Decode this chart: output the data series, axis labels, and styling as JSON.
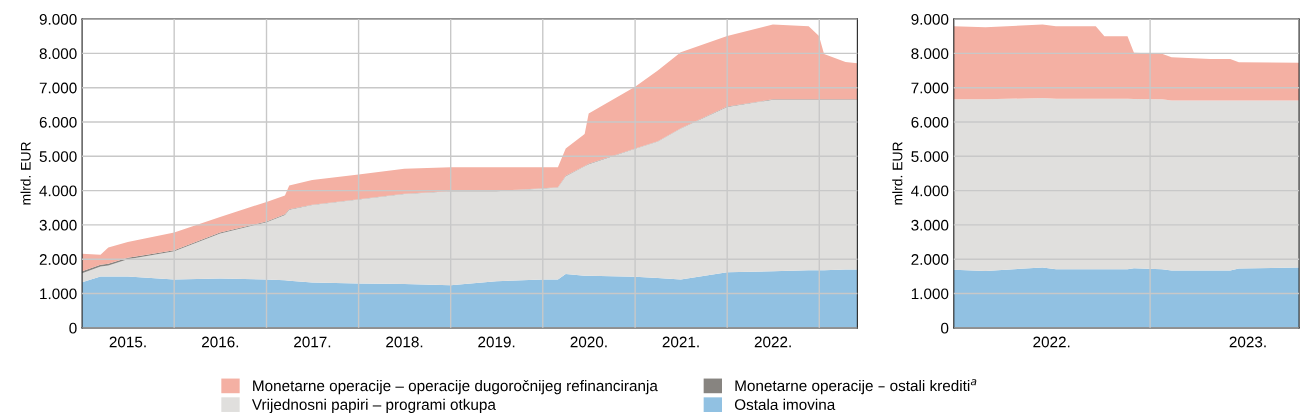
{
  "chart_data": [
    {
      "type": "area",
      "stacked": true,
      "ylabel": "mlrd. EUR",
      "grid": true,
      "legend": "bottom",
      "x": [
        "2015-01-01",
        "2015-03-15",
        "2015-04-15",
        "2015-07-01",
        "2016-01-01",
        "2016-07-01",
        "2017-01-01",
        "2017-03-15",
        "2017-04-01",
        "2017-07-01",
        "2018-01-01",
        "2018-07-01",
        "2019-01-01",
        "2019-07-01",
        "2020-01-01",
        "2020-03-01",
        "2020-04-01",
        "2020-06-15",
        "2020-07-01",
        "2021-01-01",
        "2021-04-01",
        "2021-07-01",
        "2022-01-01",
        "2022-07-01",
        "2022-11-20",
        "2022-12-31",
        "2023-01-20",
        "2023-04-15",
        "2023-06-01"
      ],
      "series": [
        {
          "name": "Ostala imovina",
          "color": "#91c1e2",
          "values": [
            1330,
            1500,
            1500,
            1500,
            1410,
            1440,
            1410,
            1390,
            1370,
            1320,
            1290,
            1280,
            1240,
            1360,
            1410,
            1410,
            1570,
            1520,
            1520,
            1490,
            1450,
            1410,
            1620,
            1650,
            1680,
            1680,
            1680,
            1700,
            1700
          ]
        },
        {
          "name": "Vrijednosni papiri – programi otkupa",
          "color": "#e0dfdd",
          "values": [
            260,
            290,
            320,
            500,
            820,
            1310,
            1670,
            1900,
            2070,
            2260,
            2450,
            2620,
            2740,
            2620,
            2650,
            2680,
            2850,
            3190,
            3250,
            3730,
            3980,
            4400,
            4820,
            5000,
            4970,
            4970,
            4970,
            4950,
            4950
          ]
        },
        {
          "name": "Monetarne operacije – ostali krediti$^{a}$",
          "color": "#878480",
          "values": [
            60,
            50,
            50,
            40,
            30,
            30,
            20,
            20,
            20,
            10,
            10,
            10,
            10,
            10,
            10,
            10,
            10,
            10,
            10,
            10,
            10,
            10,
            10,
            10,
            10,
            10,
            10,
            10,
            10
          ]
        },
        {
          "name": "Monetarne operacije – operacije dugoročnijeg refinanciranja",
          "color": "#f4b0a3",
          "values": [
            510,
            290,
            470,
            460,
            520,
            450,
            570,
            550,
            690,
            720,
            720,
            730,
            690,
            690,
            610,
            580,
            800,
            930,
            1470,
            1800,
            2060,
            2210,
            2060,
            2180,
            2130,
            1850,
            1320,
            1090,
            1050
          ]
        }
      ],
      "xlim": [
        "2015-01-01",
        "2023-06-01"
      ],
      "xticks": [
        {
          "value": "2015-07-02",
          "label": "2015."
        },
        {
          "value": "2016-01-01",
          "label": null
        },
        {
          "value": "2016-07-02",
          "label": "2016."
        },
        {
          "value": "2017-01-01",
          "label": null
        },
        {
          "value": "2017-07-02",
          "label": "2017."
        },
        {
          "value": "2018-01-01",
          "label": null
        },
        {
          "value": "2018-07-02",
          "label": "2018."
        },
        {
          "value": "2019-01-01",
          "label": null
        },
        {
          "value": "2019-07-02",
          "label": "2019."
        },
        {
          "value": "2020-01-01",
          "label": null
        },
        {
          "value": "2020-07-02",
          "label": "2020."
        },
        {
          "value": "2021-01-01",
          "label": null
        },
        {
          "value": "2021-07-02",
          "label": "2021."
        },
        {
          "value": "2022-01-01",
          "label": null
        },
        {
          "value": "2022-07-02",
          "label": "2022."
        },
        {
          "value": "2023-01-01",
          "label": null
        }
      ],
      "ylim": [
        0,
        9000
      ],
      "yticks": [
        {
          "value": 0,
          "label": "0"
        },
        {
          "value": 1000,
          "label": "1.000"
        },
        {
          "value": 2000,
          "label": "2.000"
        },
        {
          "value": 3000,
          "label": "3.000"
        },
        {
          "value": 4000,
          "label": "4.000"
        },
        {
          "value": 5000,
          "label": "5.000"
        },
        {
          "value": 6000,
          "label": "6.000"
        },
        {
          "value": 7000,
          "label": "7.000"
        },
        {
          "value": 8000,
          "label": "8.000"
        },
        {
          "value": 9000,
          "label": "9.000"
        }
      ]
    },
    {
      "type": "area",
      "stacked": true,
      "ylabel": "mlrd. EUR",
      "grid": true,
      "x": [
        "2022-01-01",
        "2022-03-01",
        "2022-06-15",
        "2022-07-10",
        "2022-09-22",
        "2022-10-08",
        "2022-11-20",
        "2022-12-02",
        "2023-01-23",
        "2023-02-10",
        "2023-04-23",
        "2023-05-30",
        "2023-06-15",
        "2023-10-05"
      ],
      "series": [
        {
          "color": "#91c1e2",
          "values": [
            1690,
            1660,
            1760,
            1710,
            1710,
            1710,
            1710,
            1740,
            1710,
            1670,
            1670,
            1670,
            1730,
            1760
          ]
        },
        {
          "color": "#e0dfdd",
          "values": [
            4970,
            5000,
            4940,
            4970,
            4970,
            4970,
            4970,
            4930,
            4950,
            4960,
            4960,
            4960,
            4900,
            4870
          ]
        },
        {
          "color": "#f4b0a3",
          "values": [
            2130,
            2100,
            2140,
            2110,
            2110,
            1820,
            1820,
            1350,
            1330,
            1260,
            1210,
            1210,
            1110,
            1100
          ]
        }
      ],
      "xlim": [
        "2022-01-01",
        "2023-10-05"
      ],
      "xticks": [
        {
          "value": "2022-07-02",
          "label": "2022."
        },
        {
          "value": "2023-01-01",
          "label": null
        },
        {
          "value": "2023-07-02",
          "label": "2023."
        }
      ],
      "ylim": [
        0,
        9000
      ],
      "yticks": [
        {
          "value": 0,
          "label": "0"
        },
        {
          "value": 1000,
          "label": "1.000"
        },
        {
          "value": 2000,
          "label": "2.000"
        },
        {
          "value": 3000,
          "label": "3.000"
        },
        {
          "value": 4000,
          "label": "4.000"
        },
        {
          "value": 5000,
          "label": "5.000"
        },
        {
          "value": 6000,
          "label": "6.000"
        },
        {
          "value": 7000,
          "label": "7.000"
        },
        {
          "value": 8000,
          "label": "8.000"
        },
        {
          "value": 9000,
          "label": "9.000"
        }
      ]
    }
  ]
}
